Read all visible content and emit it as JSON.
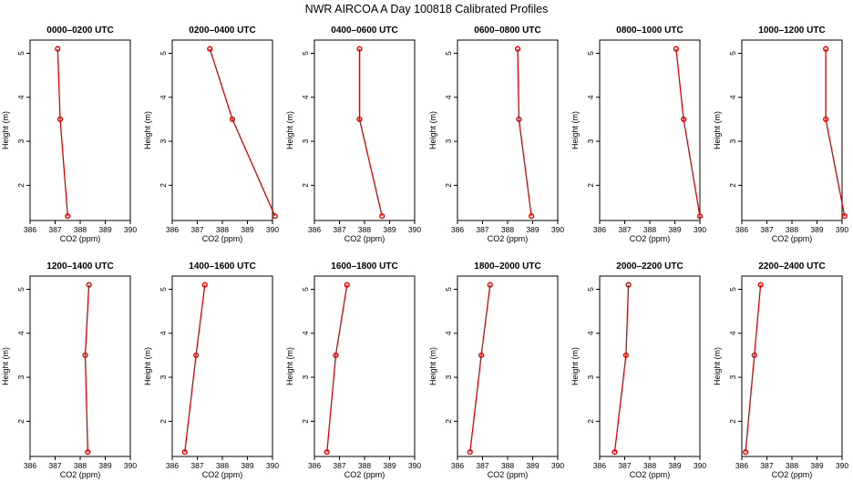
{
  "title": "NWR AIRCOA A  Day 100818  Calibrated Profiles",
  "colors": {
    "line": "#dd0000",
    "axis": "#000000",
    "background": "#ffffff"
  },
  "chart_data": [
    {
      "type": "line",
      "title": "0000–0200 UTC",
      "xlabel": "CO2 (ppm)",
      "ylabel": "Height (m)",
      "xlim": [
        386,
        390
      ],
      "ylim": [
        1.2,
        5.3
      ],
      "xticks": [
        "386",
        "387",
        "388",
        "389",
        "390"
      ],
      "yticks": [
        "2",
        "3",
        "4",
        "5"
      ],
      "x": [
        387.1,
        387.2,
        387.5
      ],
      "y": [
        5.1,
        3.5,
        1.3
      ]
    },
    {
      "type": "line",
      "title": "0200–0400 UTC",
      "xlabel": "CO2 (ppm)",
      "ylabel": "Height (m)",
      "xlim": [
        386,
        390
      ],
      "ylim": [
        1.2,
        5.3
      ],
      "xticks": [
        "386",
        "387",
        "388",
        "389",
        "390"
      ],
      "yticks": [
        "2",
        "3",
        "4",
        "5"
      ],
      "x": [
        387.5,
        388.4,
        390.1
      ],
      "y": [
        5.1,
        3.5,
        1.3
      ]
    },
    {
      "type": "line",
      "title": "0400–0600 UTC",
      "xlabel": "CO2 (ppm)",
      "ylabel": "Height (m)",
      "xlim": [
        386,
        390
      ],
      "ylim": [
        1.2,
        5.3
      ],
      "xticks": [
        "386",
        "387",
        "388",
        "389",
        "390"
      ],
      "yticks": [
        "2",
        "3",
        "4",
        "5"
      ],
      "x": [
        387.8,
        387.8,
        388.7
      ],
      "y": [
        5.1,
        3.5,
        1.3
      ]
    },
    {
      "type": "line",
      "title": "0600–0800 UTC",
      "xlabel": "CO2 (ppm)",
      "ylabel": "Height (m)",
      "xlim": [
        386,
        390
      ],
      "ylim": [
        1.2,
        5.3
      ],
      "xticks": [
        "386",
        "387",
        "388",
        "389",
        "390"
      ],
      "yticks": [
        "2",
        "3",
        "4",
        "5"
      ],
      "x": [
        388.4,
        388.45,
        388.95
      ],
      "y": [
        5.1,
        3.5,
        1.3
      ]
    },
    {
      "type": "line",
      "title": "0800–1000 UTC",
      "xlabel": "CO2 (ppm)",
      "ylabel": "Height (m)",
      "xlim": [
        386,
        390
      ],
      "ylim": [
        1.2,
        5.3
      ],
      "xticks": [
        "386",
        "387",
        "388",
        "389",
        "390"
      ],
      "yticks": [
        "2",
        "3",
        "4",
        "5"
      ],
      "x": [
        389.05,
        389.35,
        390.0
      ],
      "y": [
        5.1,
        3.5,
        1.3
      ]
    },
    {
      "type": "line",
      "title": "1000–1200 UTC",
      "xlabel": "CO2 (ppm)",
      "ylabel": "Height (m)",
      "xlim": [
        386,
        390
      ],
      "ylim": [
        1.2,
        5.3
      ],
      "xticks": [
        "386",
        "387",
        "388",
        "389",
        "390"
      ],
      "yticks": [
        "2",
        "3",
        "4",
        "5"
      ],
      "x": [
        389.35,
        389.35,
        390.1
      ],
      "y": [
        5.1,
        3.5,
        1.3
      ]
    },
    {
      "type": "line",
      "title": "1200–1400 UTC",
      "xlabel": "CO2 (ppm)",
      "ylabel": "Height (m)",
      "xlim": [
        386,
        390
      ],
      "ylim": [
        1.2,
        5.3
      ],
      "xticks": [
        "386",
        "387",
        "388",
        "389",
        "390"
      ],
      "yticks": [
        "2",
        "3",
        "4",
        "5"
      ],
      "x": [
        388.35,
        388.2,
        388.3
      ],
      "y": [
        5.1,
        3.5,
        1.3
      ]
    },
    {
      "type": "line",
      "title": "1400–1600 UTC",
      "xlabel": "CO2 (ppm)",
      "ylabel": "Height (m)",
      "xlim": [
        386,
        390
      ],
      "ylim": [
        1.2,
        5.3
      ],
      "xticks": [
        "386",
        "387",
        "388",
        "389",
        "390"
      ],
      "yticks": [
        "2",
        "3",
        "4",
        "5"
      ],
      "x": [
        387.3,
        386.95,
        386.5
      ],
      "y": [
        5.1,
        3.5,
        1.3
      ]
    },
    {
      "type": "line",
      "title": "1600–1800 UTC",
      "xlabel": "CO2 (ppm)",
      "ylabel": "Height (m)",
      "xlim": [
        386,
        390
      ],
      "ylim": [
        1.2,
        5.3
      ],
      "xticks": [
        "386",
        "387",
        "388",
        "389",
        "390"
      ],
      "yticks": [
        "2",
        "3",
        "4",
        "5"
      ],
      "x": [
        387.3,
        386.85,
        386.5
      ],
      "y": [
        5.1,
        3.5,
        1.3
      ]
    },
    {
      "type": "line",
      "title": "1800–2000 UTC",
      "xlabel": "CO2 (ppm)",
      "ylabel": "Height (m)",
      "xlim": [
        386,
        390
      ],
      "ylim": [
        1.2,
        5.3
      ],
      "xticks": [
        "386",
        "387",
        "388",
        "389",
        "390"
      ],
      "yticks": [
        "2",
        "3",
        "4",
        "5"
      ],
      "x": [
        387.3,
        386.95,
        386.5
      ],
      "y": [
        5.1,
        3.5,
        1.3
      ]
    },
    {
      "type": "line",
      "title": "2000–2200 UTC",
      "xlabel": "CO2 (ppm)",
      "ylabel": "Height (m)",
      "xlim": [
        386,
        390
      ],
      "ylim": [
        1.2,
        5.3
      ],
      "xticks": [
        "386",
        "387",
        "388",
        "389",
        "390"
      ],
      "yticks": [
        "2",
        "3",
        "4",
        "5"
      ],
      "x": [
        387.15,
        387.05,
        386.6
      ],
      "y": [
        5.1,
        3.5,
        1.3
      ]
    },
    {
      "type": "line",
      "title": "2200–2400 UTC",
      "xlabel": "CO2 (ppm)",
      "ylabel": "Height (m)",
      "xlim": [
        386,
        390
      ],
      "ylim": [
        1.2,
        5.3
      ],
      "xticks": [
        "386",
        "387",
        "388",
        "389",
        "390"
      ],
      "yticks": [
        "2",
        "3",
        "4",
        "5"
      ],
      "x": [
        386.75,
        386.5,
        386.15
      ],
      "y": [
        5.1,
        3.5,
        1.3
      ]
    }
  ]
}
